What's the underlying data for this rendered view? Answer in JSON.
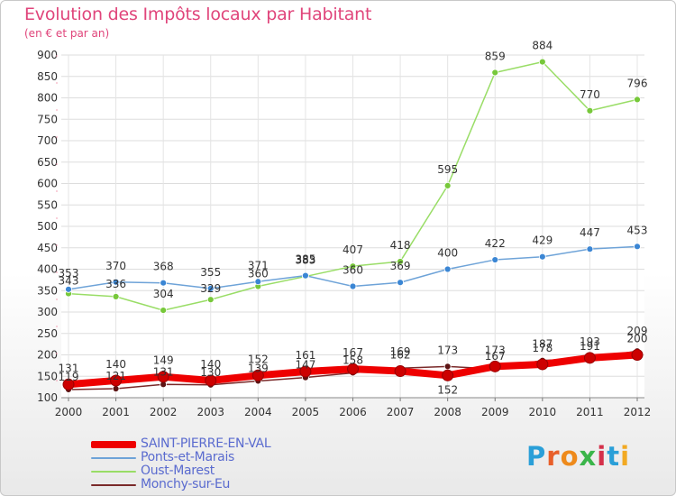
{
  "title": "Evolution des Impôts locaux par Habitant",
  "subtitle": "(en € et par an)",
  "logo": {
    "text": "Proxiti",
    "letter_colors": [
      "#2a9fd8",
      "#e85f2a",
      "#ee8a1b",
      "#3ab54a",
      "#d4304a",
      "#2a9fd8",
      "#f2a922"
    ]
  },
  "chart_data": {
    "type": "line",
    "x": [
      "2000",
      "2001",
      "2002",
      "2003",
      "2004",
      "2005",
      "2006",
      "2007",
      "2008",
      "2009",
      "2010",
      "2011",
      "2012"
    ],
    "ylim": [
      100,
      900
    ],
    "yticks": [
      100,
      150,
      200,
      250,
      300,
      350,
      400,
      450,
      500,
      550,
      600,
      650,
      700,
      750,
      800,
      850,
      900
    ],
    "grid": true,
    "legend_position": "bottom-left",
    "series": [
      {
        "name": "SAINT-PIERRE-EN-VAL",
        "color": "#ee0000",
        "marker_color": "#cc0000",
        "line_width": 8,
        "values": [
          131,
          140,
          149,
          140,
          152,
          161,
          167,
          162,
          152,
          173,
          178,
          193,
          200
        ],
        "label_offset": [
          -14,
          -14,
          -14,
          -14,
          -14,
          -14,
          -14,
          -14,
          14,
          -14,
          -14,
          -14,
          -14
        ]
      },
      {
        "name": "Ponts-et-Marais",
        "color": "#6ea3d8",
        "marker_color": "#3b86d4",
        "line_width": 1.5,
        "values": [
          353,
          370,
          368,
          355,
          371,
          385,
          360,
          369,
          400,
          422,
          429,
          447,
          453
        ],
        "label_offset": [
          -14,
          -14,
          -14,
          -14,
          -14,
          -14,
          -14,
          -14,
          -14,
          -14,
          -14,
          -14,
          -14
        ]
      },
      {
        "name": "Oust-Marest",
        "color": "#99dd66",
        "marker_color": "#77c83a",
        "line_width": 1.5,
        "values": [
          343,
          336,
          304,
          329,
          360,
          383,
          407,
          418,
          595,
          859,
          884,
          770,
          796
        ],
        "label_offset": [
          -10,
          -10,
          -14,
          -8,
          -10,
          -14,
          -14,
          -14,
          -14,
          -14,
          -14,
          -14,
          -14
        ]
      },
      {
        "name": "Monchy-sur-Eu",
        "color": "#7a2a2a",
        "marker_color": "#5c1414",
        "line_width": 1.5,
        "values": [
          119,
          121,
          131,
          130,
          139,
          147,
          158,
          169,
          173,
          167,
          187,
          191,
          209
        ],
        "label_offset": [
          -10,
          -10,
          -10,
          -10,
          -10,
          -10,
          -10,
          -14,
          -14,
          -10,
          -14,
          -10,
          -18
        ]
      }
    ]
  }
}
